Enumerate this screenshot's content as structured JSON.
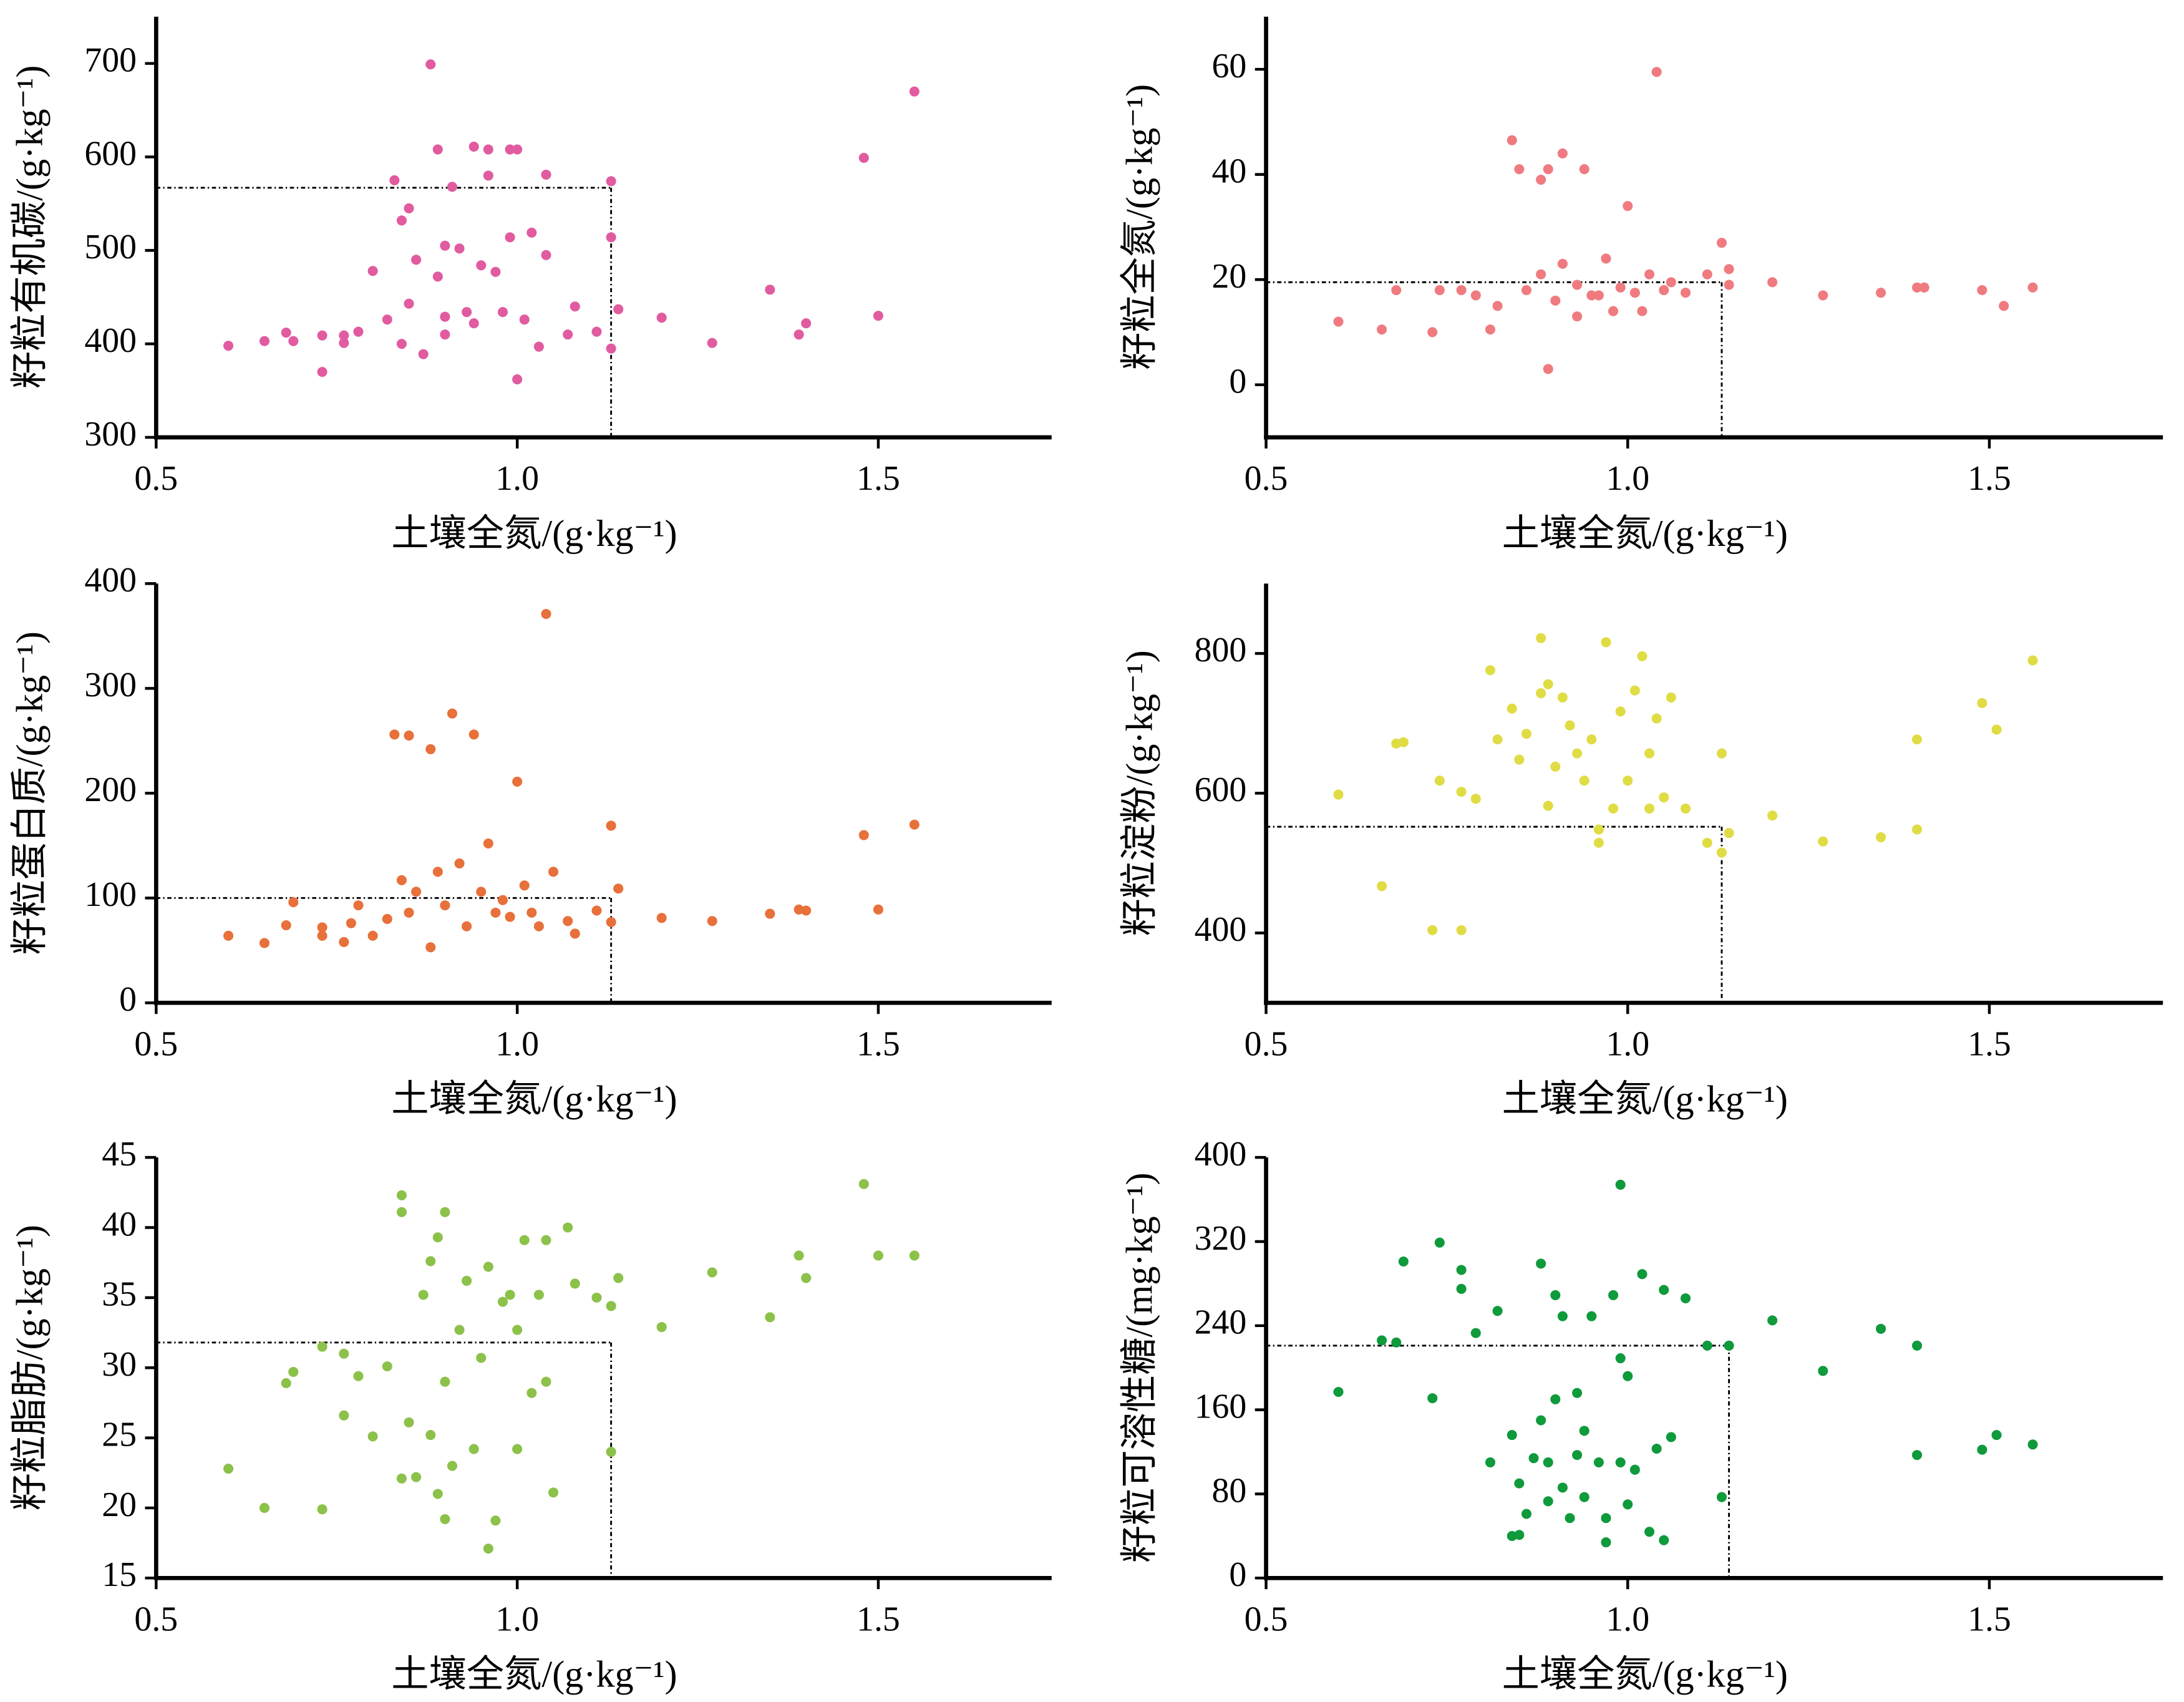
{
  "chart_data": [
    {
      "type": "scatter",
      "color": "#e15ba0",
      "x_label": "土壤全氮/(g·kg⁻¹)",
      "y_label": "籽粒有机碳/(g·kg⁻¹)",
      "xlim": [
        0.5,
        1.74
      ],
      "ylim": [
        300,
        750
      ],
      "xticks": [
        0.5,
        {
          "value": 1,
          "label": "1.0"
        },
        1.5
      ],
      "yticks": [
        300,
        400,
        500,
        600,
        700
      ],
      "threshold_x": 1.13,
      "threshold_y": 567,
      "x": [
        0.6,
        0.65,
        0.68,
        0.69,
        0.73,
        0.73,
        0.76,
        0.76,
        0.78,
        0.8,
        0.82,
        0.83,
        0.84,
        0.84,
        0.85,
        0.85,
        0.86,
        0.87,
        0.88,
        0.89,
        0.89,
        0.9,
        0.9,
        0.9,
        0.91,
        0.92,
        0.93,
        0.94,
        0.94,
        0.95,
        0.96,
        0.96,
        0.97,
        0.98,
        0.99,
        0.99,
        1.0,
        1.0,
        1.01,
        1.02,
        1.03,
        1.04,
        1.04,
        1.07,
        1.08,
        1.11,
        1.13,
        1.13,
        1.13,
        1.14,
        1.2,
        1.27,
        1.35,
        1.39,
        1.4,
        1.48,
        1.5,
        1.55
      ],
      "y": [
        398,
        403,
        412,
        403,
        370,
        409,
        401,
        409,
        413,
        478,
        426,
        575,
        532,
        400,
        545,
        443,
        490,
        389,
        699,
        608,
        472,
        505,
        429,
        410,
        568,
        502,
        434,
        611,
        422,
        484,
        608,
        580,
        477,
        434,
        608,
        514,
        362,
        608,
        426,
        519,
        397,
        581,
        495,
        410,
        440,
        413,
        514,
        574,
        395,
        437,
        428,
        401,
        458,
        410,
        422,
        599,
        430,
        670
      ]
    },
    {
      "type": "scatter",
      "color": "#ef7b80",
      "x_label": "土壤全氮/(g·kg⁻¹)",
      "y_label": "籽粒全氮/(g·kg⁻¹)",
      "xlim": [
        0.5,
        1.74
      ],
      "ylim": [
        -10,
        70
      ],
      "xticks": [
        0.5,
        {
          "value": 1,
          "label": "1.0"
        },
        1.5
      ],
      "yticks": [
        0,
        20,
        40,
        60
      ],
      "threshold_x": 1.13,
      "threshold_y": 19.5,
      "x": [
        0.6,
        0.66,
        0.68,
        0.73,
        0.74,
        0.77,
        0.79,
        0.81,
        0.82,
        0.84,
        0.85,
        0.86,
        0.88,
        0.88,
        0.89,
        0.89,
        0.9,
        0.91,
        0.91,
        0.93,
        0.93,
        0.94,
        0.95,
        0.96,
        0.97,
        0.98,
        0.99,
        1.0,
        1.01,
        1.02,
        1.03,
        1.04,
        1.05,
        1.06,
        1.08,
        1.11,
        1.13,
        1.14,
        1.14,
        1.2,
        1.27,
        1.35,
        1.4,
        1.41,
        1.49,
        1.52,
        1.56
      ],
      "y": [
        12,
        10.5,
        18,
        10,
        18,
        18,
        17,
        10.5,
        15,
        46.5,
        41,
        18,
        21,
        39,
        3,
        41,
        16,
        44,
        23,
        13,
        19,
        41,
        17,
        17,
        24,
        14,
        18.5,
        34,
        17.5,
        14,
        21,
        59.5,
        18,
        19.5,
        17.5,
        21,
        27,
        19,
        22,
        19.5,
        17,
        17.5,
        18.5,
        18.5,
        18,
        15,
        18.5
      ]
    },
    {
      "type": "scatter",
      "color": "#e8703a",
      "x_label": "土壤全氮/(g·kg⁻¹)",
      "y_label": "籽粒蛋白质/(g·kg⁻¹)",
      "xlim": [
        0.5,
        1.74
      ],
      "ylim": [
        0,
        400
      ],
      "xticks": [
        0.5,
        {
          "value": 1,
          "label": "1.0"
        },
        1.5
      ],
      "yticks": [
        0,
        100,
        200,
        300,
        400
      ],
      "threshold_x": 1.13,
      "threshold_y": 100,
      "x": [
        0.6,
        0.65,
        0.69,
        0.68,
        0.73,
        0.73,
        0.76,
        0.77,
        0.78,
        0.8,
        0.82,
        0.83,
        0.85,
        0.84,
        0.85,
        0.86,
        0.88,
        0.88,
        0.89,
        0.9,
        0.91,
        0.92,
        0.93,
        0.94,
        0.95,
        0.96,
        0.97,
        0.98,
        0.99,
        1.0,
        1.01,
        1.02,
        1.03,
        1.04,
        1.05,
        1.07,
        1.08,
        1.11,
        1.13,
        1.13,
        1.14,
        1.2,
        1.27,
        1.35,
        1.39,
        1.4,
        1.48,
        1.5,
        1.55
      ],
      "y": [
        64,
        57,
        96,
        74,
        72,
        64,
        58,
        76,
        93,
        64,
        80,
        256,
        255,
        117,
        86,
        106,
        242,
        53,
        125,
        93,
        276,
        133,
        73,
        256,
        106,
        152,
        86,
        98,
        82,
        211,
        112,
        86,
        73,
        371,
        125,
        78,
        66,
        88,
        169,
        77,
        109,
        81,
        78,
        85,
        89,
        88,
        160,
        89,
        170
      ]
    },
    {
      "type": "scatter",
      "color": "#e0dc44",
      "x_label": "土壤全氮/(g·kg⁻¹)",
      "y_label": "籽粒淀粉/(g·kg⁻¹)",
      "xlim": [
        0.5,
        1.74
      ],
      "ylim": [
        300,
        900
      ],
      "xticks": [
        0.5,
        {
          "value": 1,
          "label": "1.0"
        },
        1.5
      ],
      "yticks": [
        400,
        600,
        800
      ],
      "threshold_x": 1.13,
      "threshold_y": 552,
      "x": [
        0.6,
        0.66,
        0.68,
        0.69,
        0.73,
        0.74,
        0.77,
        0.77,
        0.79,
        0.81,
        0.82,
        0.84,
        0.85,
        0.86,
        0.88,
        0.88,
        0.89,
        0.89,
        0.9,
        0.91,
        0.92,
        0.93,
        0.94,
        0.95,
        0.96,
        0.97,
        0.96,
        0.98,
        0.99,
        1.0,
        1.01,
        1.02,
        1.03,
        1.03,
        1.04,
        1.05,
        1.06,
        1.08,
        1.11,
        1.13,
        1.13,
        1.14,
        1.2,
        1.27,
        1.35,
        1.4,
        1.4,
        1.49,
        1.51,
        1.56
      ],
      "y": [
        598,
        467,
        671,
        673,
        404,
        618,
        404,
        602,
        592,
        776,
        677,
        721,
        648,
        685,
        822,
        743,
        756,
        582,
        638,
        737,
        697,
        657,
        618,
        677,
        548,
        816,
        529,
        578,
        717,
        618,
        747,
        796,
        578,
        657,
        707,
        594,
        737,
        578,
        529,
        657,
        515,
        543,
        568,
        531,
        537,
        677,
        548,
        729,
        691,
        790
      ]
    },
    {
      "type": "scatter",
      "color": "#8cc14a",
      "x_label": "土壤全氮/(g·kg⁻¹)",
      "y_label": "籽粒脂肪/(g·kg⁻¹)",
      "xlim": [
        0.5,
        1.74
      ],
      "ylim": [
        15,
        45
      ],
      "xticks": [
        0.5,
        {
          "value": 1,
          "label": "1.0"
        },
        1.5
      ],
      "yticks": [
        15,
        20,
        25,
        30,
        35,
        40,
        45
      ],
      "threshold_x": 1.13,
      "threshold_y": 31.8,
      "x": [
        0.6,
        0.65,
        0.69,
        0.68,
        0.73,
        0.73,
        0.76,
        0.76,
        0.78,
        0.8,
        0.82,
        0.84,
        0.84,
        0.84,
        0.85,
        0.86,
        0.87,
        0.88,
        0.88,
        0.89,
        0.89,
        0.9,
        0.9,
        0.9,
        0.91,
        0.92,
        0.93,
        0.94,
        0.95,
        0.96,
        0.96,
        0.97,
        0.98,
        0.99,
        1.0,
        1.0,
        1.01,
        1.02,
        1.03,
        1.04,
        1.04,
        1.05,
        1.07,
        1.08,
        1.11,
        1.13,
        1.13,
        1.14,
        1.2,
        1.27,
        1.35,
        1.39,
        1.4,
        1.48,
        1.5,
        1.55
      ],
      "y": [
        22.8,
        20,
        29.7,
        28.9,
        19.9,
        31.5,
        31,
        26.6,
        29.4,
        25.1,
        30.1,
        42.3,
        41.1,
        22.1,
        26.1,
        22.2,
        35.2,
        25.2,
        37.6,
        21,
        39.3,
        41.1,
        29,
        19.2,
        23,
        32.7,
        36.2,
        24.2,
        30.7,
        37.2,
        17.1,
        19.1,
        34.7,
        35.2,
        24.2,
        32.7,
        39.1,
        28.2,
        35.2,
        39.1,
        29,
        21.1,
        40,
        36,
        35,
        34.4,
        24,
        36.4,
        32.9,
        36.8,
        33.6,
        38,
        36.4,
        43.1,
        38,
        38
      ]
    },
    {
      "type": "scatter",
      "color": "#0f9a3c",
      "x_label": "土壤全氮/(g·kg⁻¹)",
      "y_label": "籽粒可溶性糖/(mg·kg⁻¹)",
      "xlim": [
        0.5,
        1.74
      ],
      "ylim": [
        0,
        400
      ],
      "xticks": [
        0.5,
        {
          "value": 1,
          "label": "1.0"
        },
        1.5
      ],
      "yticks": [
        0,
        80,
        160,
        240,
        320,
        400
      ],
      "threshold_x": 1.14,
      "threshold_y": 221,
      "x": [
        0.6,
        0.66,
        0.68,
        0.69,
        0.73,
        0.74,
        0.77,
        0.77,
        0.79,
        0.81,
        0.82,
        0.84,
        0.84,
        0.85,
        0.85,
        0.86,
        0.87,
        0.88,
        0.88,
        0.89,
        0.89,
        0.9,
        0.9,
        0.91,
        0.91,
        0.92,
        0.93,
        0.93,
        0.94,
        0.94,
        0.95,
        0.96,
        0.97,
        0.97,
        0.98,
        0.99,
        0.99,
        0.99,
        1.0,
        1.0,
        1.01,
        1.02,
        1.03,
        1.04,
        1.05,
        1.05,
        1.06,
        1.08,
        1.11,
        1.13,
        1.14,
        1.2,
        1.27,
        1.35,
        1.4,
        1.4,
        1.49,
        1.51,
        1.56
      ],
      "y": [
        177,
        226,
        224,
        301,
        171,
        319,
        293,
        275,
        233,
        110,
        254,
        136,
        40,
        41,
        90,
        61,
        114,
        299,
        150,
        73,
        110,
        269,
        170,
        86,
        249,
        57,
        176,
        117,
        140,
        77,
        249,
        110,
        57,
        34,
        269,
        374,
        110,
        209,
        192,
        70,
        103,
        289,
        44,
        123,
        36,
        274,
        134,
        266,
        221,
        77,
        221,
        245,
        197,
        237,
        117,
        221,
        122,
        136,
        127
      ]
    }
  ]
}
